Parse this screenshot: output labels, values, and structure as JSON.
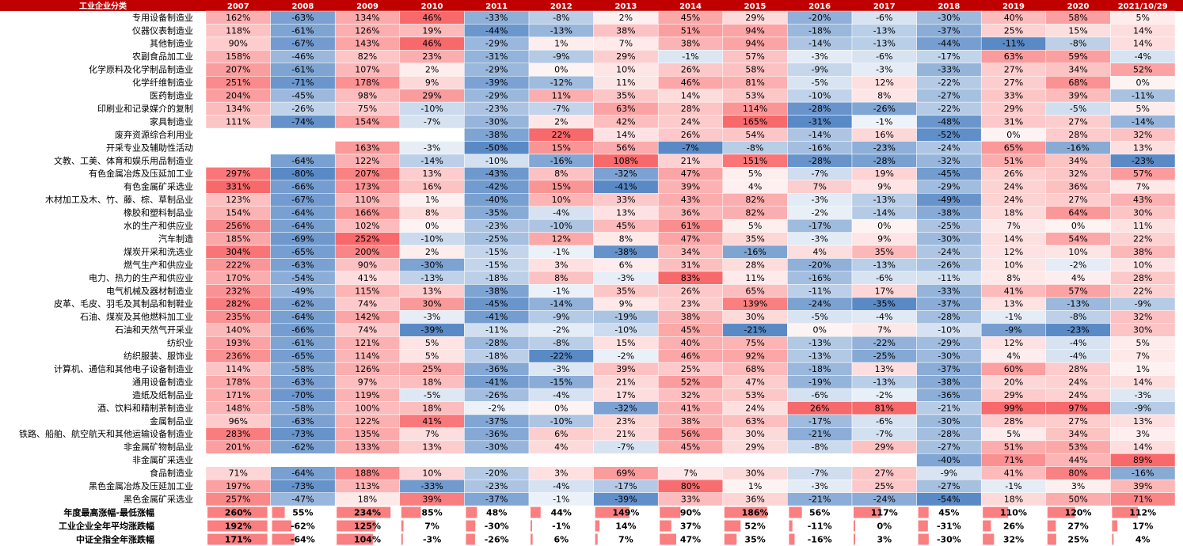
{
  "chart_data": {
    "type": "heatmap",
    "title": "",
    "header_label": "工业企业分类",
    "columns": [
      "2007",
      "2008",
      "2009",
      "2010",
      "2011",
      "2012",
      "2013",
      "2014",
      "2015",
      "2016",
      "2017",
      "2018",
      "2019",
      "2020",
      "2021/10/29"
    ],
    "rows": [
      {
        "label": "专用设备制造业",
        "values": [
          "162%",
          "-63%",
          "134%",
          "46%",
          "-33%",
          "-8%",
          "2%",
          "45%",
          "29%",
          "-20%",
          "-6%",
          "-30%",
          "40%",
          "58%",
          "5%"
        ]
      },
      {
        "label": "仪器仪表制造业",
        "values": [
          "118%",
          "-61%",
          "126%",
          "19%",
          "-44%",
          "-13%",
          "38%",
          "51%",
          "94%",
          "-18%",
          "-13%",
          "-37%",
          "25%",
          "15%",
          "14%"
        ]
      },
      {
        "label": "其他制造业",
        "values": [
          "90%",
          "-67%",
          "143%",
          "46%",
          "-29%",
          "1%",
          "7%",
          "38%",
          "94%",
          "-14%",
          "-13%",
          "-44%",
          "-11%",
          "-8%",
          "14%"
        ]
      },
      {
        "label": "农副食品加工业",
        "values": [
          "158%",
          "-46%",
          "82%",
          "23%",
          "-31%",
          "-9%",
          "29%",
          "-1%",
          "57%",
          "-3%",
          "-6%",
          "-17%",
          "63%",
          "59%",
          "-4%"
        ]
      },
      {
        "label": "化学原料及化学制品制造业",
        "values": [
          "207%",
          "-61%",
          "107%",
          "2%",
          "-29%",
          "0%",
          "10%",
          "26%",
          "58%",
          "-9%",
          "-3%",
          "-33%",
          "27%",
          "34%",
          "52%"
        ]
      },
      {
        "label": "化学纤维制造业",
        "values": [
          "251%",
          "-71%",
          "178%",
          "9%",
          "-39%",
          "-12%",
          "11%",
          "46%",
          "81%",
          "-5%",
          "12%",
          "-22%",
          "27%",
          "68%",
          "0%"
        ]
      },
      {
        "label": "医药制造业",
        "values": [
          "204%",
          "-45%",
          "98%",
          "29%",
          "-29%",
          "11%",
          "35%",
          "14%",
          "53%",
          "-10%",
          "8%",
          "-27%",
          "33%",
          "39%",
          "-11%"
        ]
      },
      {
        "label": "印刷业和记录媒介的复制",
        "values": [
          "134%",
          "-26%",
          "75%",
          "-10%",
          "-23%",
          "-7%",
          "63%",
          "28%",
          "114%",
          "-28%",
          "-26%",
          "-22%",
          "29%",
          "-5%",
          "5%"
        ]
      },
      {
        "label": "家具制造业",
        "values": [
          "111%",
          "-74%",
          "154%",
          "-7%",
          "-30%",
          "2%",
          "42%",
          "24%",
          "165%",
          "-31%",
          "-1%",
          "-48%",
          "31%",
          "27%",
          "-14%"
        ]
      },
      {
        "label": "废弃资源综合利用业",
        "values": [
          "",
          "",
          "",
          "",
          "-38%",
          "22%",
          "14%",
          "26%",
          "54%",
          "-14%",
          "16%",
          "-52%",
          "0%",
          "28%",
          "32%"
        ]
      },
      {
        "label": "开采专业及辅助性活动",
        "values": [
          "",
          "",
          "163%",
          "-3%",
          "-50%",
          "15%",
          "56%",
          "-7%",
          "-8%",
          "-16%",
          "-23%",
          "-24%",
          "65%",
          "-16%",
          "13%"
        ]
      },
      {
        "label": "文教、工美、体育和娱乐用品制造业",
        "values": [
          "",
          "-64%",
          "122%",
          "-14%",
          "-10%",
          "-16%",
          "108%",
          "21%",
          "151%",
          "-28%",
          "-28%",
          "-32%",
          "51%",
          "34%",
          "-23%"
        ]
      },
      {
        "label": "有色金属冶炼及压延加工业",
        "values": [
          "297%",
          "-80%",
          "207%",
          "13%",
          "-43%",
          "8%",
          "-32%",
          "47%",
          "5%",
          "-7%",
          "19%",
          "-45%",
          "26%",
          "32%",
          "57%"
        ]
      },
      {
        "label": "有色金属矿采选业",
        "values": [
          "331%",
          "-66%",
          "173%",
          "16%",
          "-42%",
          "15%",
          "-41%",
          "39%",
          "4%",
          "7%",
          "9%",
          "-29%",
          "24%",
          "36%",
          "7%"
        ]
      },
      {
        "label": "木材加工及木、竹、藤、棕、草制品业",
        "values": [
          "123%",
          "-67%",
          "110%",
          "1%",
          "-40%",
          "10%",
          "33%",
          "43%",
          "82%",
          "-3%",
          "-13%",
          "-49%",
          "24%",
          "27%",
          "43%"
        ]
      },
      {
        "label": "橡胶和塑料制品业",
        "values": [
          "154%",
          "-64%",
          "166%",
          "8%",
          "-35%",
          "-4%",
          "13%",
          "36%",
          "82%",
          "-2%",
          "-14%",
          "-38%",
          "18%",
          "64%",
          "30%"
        ]
      },
      {
        "label": "水的生产和供应业",
        "values": [
          "256%",
          "-64%",
          "102%",
          "0%",
          "-23%",
          "-10%",
          "45%",
          "61%",
          "5%",
          "-17%",
          "0%",
          "-25%",
          "7%",
          "0%",
          "11%"
        ]
      },
      {
        "label": "汽车制造",
        "values": [
          "185%",
          "-69%",
          "252%",
          "-10%",
          "-25%",
          "12%",
          "8%",
          "47%",
          "35%",
          "-3%",
          "9%",
          "-30%",
          "14%",
          "54%",
          "22%"
        ]
      },
      {
        "label": "煤炭开采和洗选业",
        "values": [
          "304%",
          "-65%",
          "200%",
          "2%",
          "-15%",
          "-1%",
          "-38%",
          "34%",
          "-16%",
          "4%",
          "35%",
          "-24%",
          "12%",
          "10%",
          "38%"
        ]
      },
      {
        "label": "燃气生产和供应业",
        "values": [
          "222%",
          "-63%",
          "90%",
          "-30%",
          "-15%",
          "3%",
          "6%",
          "31%",
          "28%",
          "-20%",
          "-13%",
          "-26%",
          "10%",
          "-2%",
          "10%"
        ]
      },
      {
        "label": "电力、热力的生产和供应业",
        "values": [
          "170%",
          "-54%",
          "41%",
          "-13%",
          "-18%",
          "8%",
          "-3%",
          "83%",
          "11%",
          "-16%",
          "-6%",
          "-11%",
          "8%",
          "4%",
          "28%"
        ]
      },
      {
        "label": "电气机械及器材制造业",
        "values": [
          "232%",
          "-49%",
          "115%",
          "13%",
          "-38%",
          "-1%",
          "35%",
          "26%",
          "65%",
          "-11%",
          "17%",
          "-33%",
          "41%",
          "57%",
          "22%"
        ]
      },
      {
        "label": "皮革、毛皮、羽毛及其制品和制鞋业",
        "values": [
          "282%",
          "-62%",
          "74%",
          "30%",
          "-45%",
          "-14%",
          "9%",
          "23%",
          "139%",
          "-24%",
          "-35%",
          "-37%",
          "13%",
          "-13%",
          "-9%"
        ]
      },
      {
        "label": "石油、煤炭及其他燃料加工业",
        "values": [
          "235%",
          "-64%",
          "142%",
          "-3%",
          "-41%",
          "-9%",
          "-19%",
          "38%",
          "30%",
          "-5%",
          "-4%",
          "-28%",
          "-1%",
          "-8%",
          "32%"
        ]
      },
      {
        "label": "石油和天然气开采业",
        "values": [
          "140%",
          "-66%",
          "74%",
          "-39%",
          "-11%",
          "-2%",
          "-10%",
          "45%",
          "-21%",
          "0%",
          "7%",
          "-10%",
          "-9%",
          "-23%",
          "30%"
        ]
      },
      {
        "label": "纺织业",
        "values": [
          "193%",
          "-61%",
          "121%",
          "5%",
          "-28%",
          "-8%",
          "15%",
          "40%",
          "75%",
          "-13%",
          "-22%",
          "-29%",
          "12%",
          "-4%",
          "5%"
        ]
      },
      {
        "label": "纺织服装、服饰业",
        "values": [
          "236%",
          "-65%",
          "114%",
          "5%",
          "-18%",
          "-22%",
          "-2%",
          "46%",
          "92%",
          "-13%",
          "-25%",
          "-30%",
          "4%",
          "-4%",
          "7%"
        ]
      },
      {
        "label": "计算机、通信和其他电子设备制造业",
        "values": [
          "114%",
          "-58%",
          "126%",
          "25%",
          "-36%",
          "-3%",
          "39%",
          "25%",
          "68%",
          "-18%",
          "13%",
          "-37%",
          "60%",
          "28%",
          "1%"
        ]
      },
      {
        "label": "通用设备制造业",
        "values": [
          "178%",
          "-63%",
          "97%",
          "18%",
          "-41%",
          "-15%",
          "21%",
          "52%",
          "47%",
          "-19%",
          "-13%",
          "-38%",
          "20%",
          "24%",
          "14%"
        ]
      },
      {
        "label": "造纸及纸制品业",
        "values": [
          "171%",
          "-70%",
          "119%",
          "-5%",
          "-26%",
          "-4%",
          "17%",
          "32%",
          "53%",
          "-6%",
          "-2%",
          "-36%",
          "29%",
          "24%",
          "-3%"
        ]
      },
      {
        "label": "酒、饮料和精制茶制造业",
        "values": [
          "148%",
          "-58%",
          "100%",
          "18%",
          "-2%",
          "0%",
          "-32%",
          "41%",
          "24%",
          "26%",
          "81%",
          "-21%",
          "99%",
          "97%",
          "-9%"
        ]
      },
      {
        "label": "金属制品业",
        "values": [
          "96%",
          "-63%",
          "122%",
          "41%",
          "-37%",
          "-10%",
          "23%",
          "38%",
          "63%",
          "-17%",
          "-6%",
          "-30%",
          "28%",
          "27%",
          "13%"
        ]
      },
      {
        "label": "铁路、船舶、航空航天和其他运输设备制造业",
        "values": [
          "283%",
          "-73%",
          "135%",
          "7%",
          "-36%",
          "6%",
          "21%",
          "56%",
          "30%",
          "-21%",
          "-7%",
          "-28%",
          "5%",
          "34%",
          "3%"
        ]
      },
      {
        "label": "非金属矿物制品业",
        "values": [
          "201%",
          "-62%",
          "133%",
          "13%",
          "-30%",
          "4%",
          "-7%",
          "45%",
          "29%",
          "-8%",
          "29%",
          "-27%",
          "51%",
          "53%",
          "14%"
        ]
      },
      {
        "label": "非金属矿采选业",
        "values": [
          "",
          "",
          "",
          "",
          "",
          "",
          "",
          "",
          "",
          "",
          "",
          "-40%",
          "71%",
          "44%",
          "89%"
        ]
      },
      {
        "label": "食品制造业",
        "values": [
          "71%",
          "-64%",
          "188%",
          "10%",
          "-20%",
          "3%",
          "69%",
          "7%",
          "30%",
          "-7%",
          "27%",
          "-9%",
          "41%",
          "80%",
          "-16%"
        ]
      },
      {
        "label": "黑色金属冶炼及压延加工业",
        "values": [
          "197%",
          "-73%",
          "113%",
          "-33%",
          "-23%",
          "-4%",
          "-17%",
          "80%",
          "1%",
          "-3%",
          "25%",
          "-27%",
          "-1%",
          "3%",
          "39%"
        ]
      },
      {
        "label": "黑色金属矿采选业",
        "values": [
          "257%",
          "-47%",
          "18%",
          "39%",
          "-37%",
          "-1%",
          "-39%",
          "33%",
          "36%",
          "-21%",
          "-24%",
          "-54%",
          "18%",
          "50%",
          "71%"
        ]
      }
    ],
    "summary_rows": [
      {
        "label": "年度最高涨幅-最低涨幅",
        "values": [
          "260%",
          "55%",
          "234%",
          "85%",
          "48%",
          "44%",
          "149%",
          "90%",
          "186%",
          "56%",
          "117%",
          "45%",
          "110%",
          "120%",
          "112%"
        ]
      },
      {
        "label": "工业企业全年平均涨跌幅",
        "values": [
          "192%",
          "-62%",
          "125%",
          "7%",
          "-30%",
          "-1%",
          "14%",
          "37%",
          "52%",
          "-11%",
          "0%",
          "-31%",
          "26%",
          "27%",
          "17%"
        ]
      },
      {
        "label": "中证全指全年涨跌幅",
        "values": [
          "171%",
          "-64%",
          "104%",
          "-3%",
          "-26%",
          "6%",
          "7%",
          "47%",
          "35%",
          "-16%",
          "3%",
          "-30%",
          "32%",
          "25%",
          "4%"
        ]
      }
    ],
    "colors": {
      "header_bg": "#c00000",
      "header_text": "#ffffff",
      "positive": "#f8696b",
      "negative": "#5a8ac6",
      "neutral": "#ffffff",
      "bar": "#f8696b"
    }
  }
}
